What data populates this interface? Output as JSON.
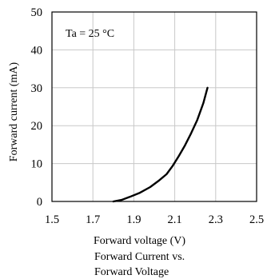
{
  "chart_data": {
    "type": "line",
    "title": "Forward Current vs. Forward Voltage",
    "title_lines": [
      "Forward Current vs.",
      "Forward Voltage"
    ],
    "xlabel": "Forward voltage (V)",
    "ylabel": "Forward current (mA)",
    "annotation": "Ta = 25 °C",
    "xlim": [
      1.5,
      2.5
    ],
    "ylim": [
      0,
      50
    ],
    "xticks": [
      "1.5",
      "1.7",
      "1.9",
      "2.1",
      "2.3",
      "2.5"
    ],
    "yticks": [
      "0",
      "10",
      "20",
      "30",
      "40",
      "50"
    ],
    "grid": true,
    "series": [
      {
        "color": "#000000",
        "x": [
          1.8,
          1.84,
          1.88,
          1.93,
          1.98,
          2.02,
          2.06,
          2.09,
          2.12,
          2.15,
          2.18,
          2.21,
          2.24,
          2.26
        ],
        "y": [
          0,
          0.4,
          1.2,
          2.3,
          3.8,
          5.4,
          7.2,
          9.4,
          12.0,
          14.8,
          18.0,
          21.5,
          26.0,
          30.0
        ]
      }
    ]
  }
}
